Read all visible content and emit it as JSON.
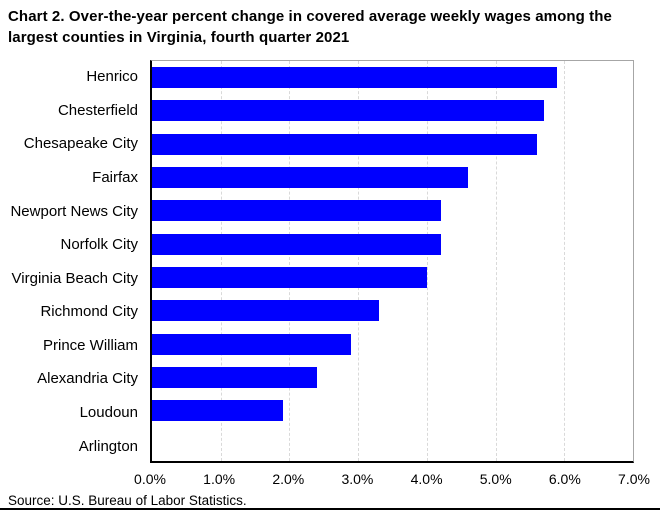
{
  "title": "Chart 2. Over-the-year percent change in covered average weekly wages among the largest counties in Virginia, fourth quarter 2021",
  "source": "Source: U.S. Bureau of Labor Statistics.",
  "colors": {
    "bar": "#0000ff",
    "gridline": "#d9d9d9",
    "axis": "#000000",
    "plot_border": "#a6a6a6"
  },
  "chart_data": {
    "type": "bar",
    "orientation": "horizontal",
    "title": "Chart 2. Over-the-year percent change in covered average weekly wages among the largest counties in Virginia, fourth quarter 2021",
    "categories": [
      "Henrico",
      "Chesterfield",
      "Chesapeake City",
      "Fairfax",
      "Newport News City",
      "Norfolk City",
      "Virginia Beach City",
      "Richmond City",
      "Prince William",
      "Alexandria City",
      "Loudoun",
      "Arlington"
    ],
    "values": [
      5.9,
      5.7,
      5.6,
      4.6,
      4.2,
      4.2,
      4.0,
      3.3,
      2.9,
      2.4,
      1.9,
      0.0
    ],
    "value_unit": "%",
    "xlabel": "",
    "ylabel": "",
    "xlim": [
      0,
      7
    ],
    "x_tick_labels": [
      "0.0%",
      "1.0%",
      "2.0%",
      "3.0%",
      "4.0%",
      "5.0%",
      "6.0%",
      "7.0%"
    ],
    "grid": "vertical-dashed",
    "legend": "none"
  }
}
